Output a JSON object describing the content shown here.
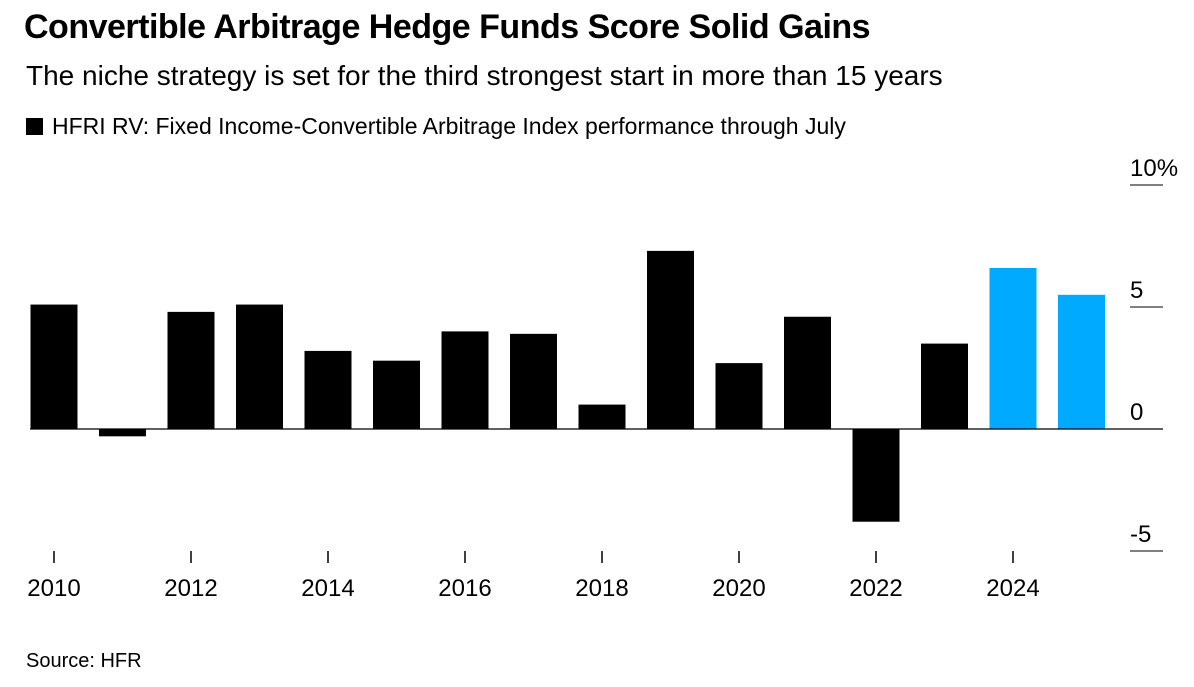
{
  "header": {
    "title": "Convertible Arbitrage Hedge Funds Score Solid Gains",
    "subtitle": "The niche strategy is set for the third strongest start in more than 15 years"
  },
  "footer": {
    "source": "Source: HFR"
  },
  "chart_data": {
    "type": "bar",
    "title": "Convertible Arbitrage Hedge Funds Score Solid Gains",
    "subtitle": "The niche strategy is set for the third strongest start in more than 15 years",
    "legend": {
      "placement": "top-left",
      "entries": [
        "HFRI RV: Fixed Income-Convertible Arbitrage Index performance through July"
      ]
    },
    "series": [
      {
        "name": "HFRI RV: Fixed Income-Convertible Arbitrage Index performance through July",
        "color": "#000000"
      }
    ],
    "categories": [
      "2010",
      "2011",
      "2012",
      "2013",
      "2014",
      "2015",
      "2016",
      "2017",
      "2018",
      "2019",
      "2020",
      "2021",
      "2022",
      "2023",
      "2024",
      "2025"
    ],
    "values": [
      5.1,
      -0.3,
      4.8,
      5.1,
      3.2,
      2.8,
      4.0,
      3.9,
      1.0,
      7.3,
      2.7,
      4.6,
      -3.8,
      3.5,
      6.6,
      5.5
    ],
    "bar_colors": [
      "#000000",
      "#000000",
      "#000000",
      "#000000",
      "#000000",
      "#000000",
      "#000000",
      "#000000",
      "#000000",
      "#000000",
      "#000000",
      "#000000",
      "#000000",
      "#000000",
      "#00aaff",
      "#00aaff"
    ],
    "x_tick_labels": [
      "2010",
      "2012",
      "2014",
      "2016",
      "2018",
      "2020",
      "2022",
      "2024"
    ],
    "y_ticks": [
      10,
      5,
      0,
      -5
    ],
    "y_tick_labels": [
      "10%",
      "5",
      "0",
      "-5"
    ],
    "ylim": [
      -5,
      10
    ],
    "xlabel": "",
    "ylabel": "",
    "grid": false,
    "zero_line": true,
    "y_axis_side": "right"
  }
}
